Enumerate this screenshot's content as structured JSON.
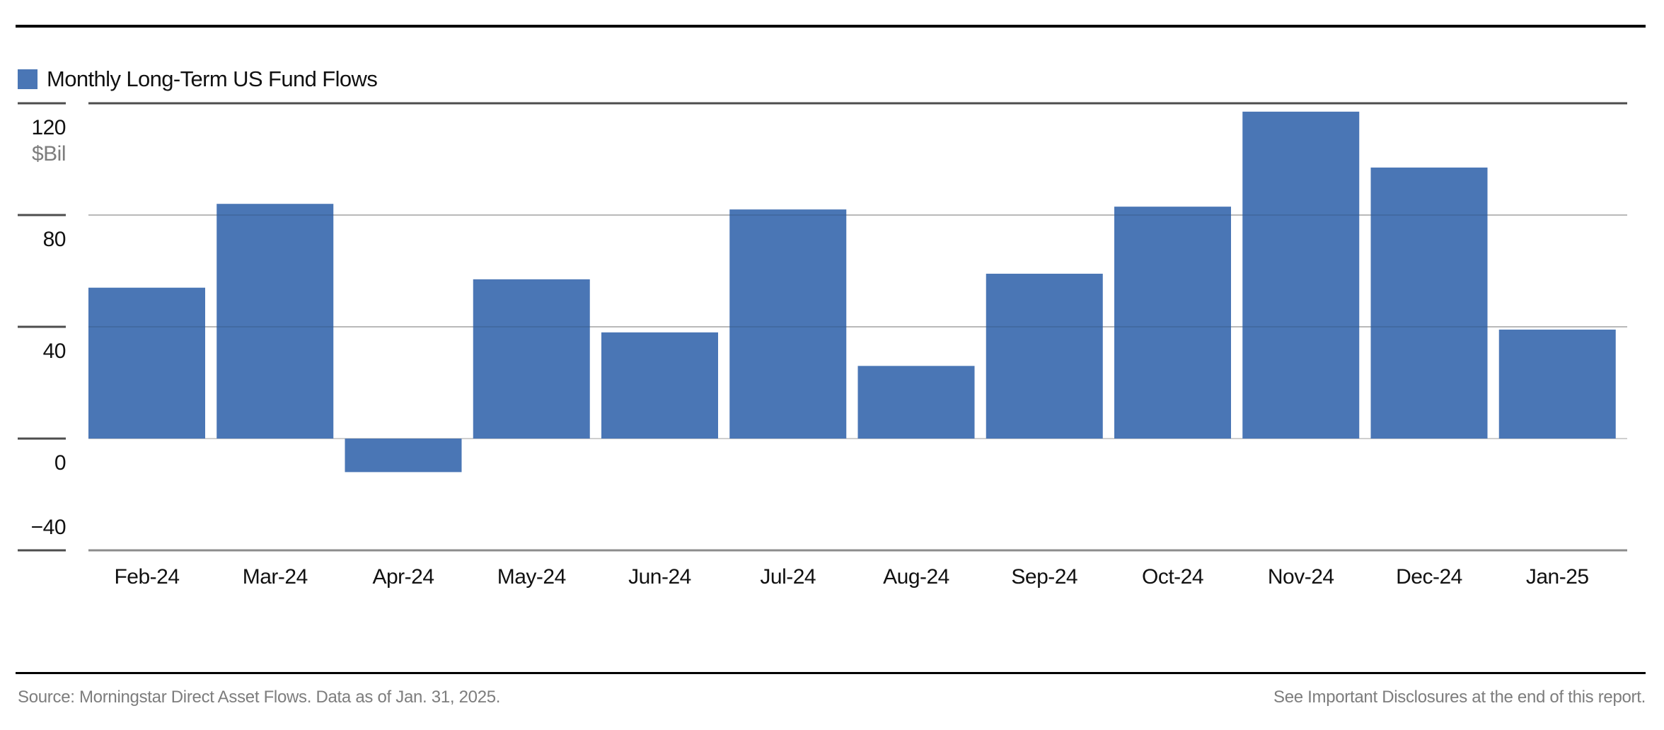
{
  "legend": {
    "label": "Monthly Long-Term US Fund Flows",
    "swatch_color": "#4a76b5"
  },
  "chart_data": {
    "type": "bar",
    "title": "Monthly Long-Term US Fund Flows",
    "categories": [
      "Feb-24",
      "Mar-24",
      "Apr-24",
      "May-24",
      "Jun-24",
      "Jul-24",
      "Aug-24",
      "Sep-24",
      "Oct-24",
      "Nov-24",
      "Dec-24",
      "Jan-25"
    ],
    "values": [
      54,
      84,
      -12,
      57,
      38,
      82,
      26,
      59,
      83,
      117,
      97,
      39
    ],
    "series_name": "Monthly Long-Term US Fund Flows",
    "xlabel": "",
    "ylabel": "$Bil",
    "unit_label": "$Bil",
    "y_ticks": [
      120,
      80,
      40,
      0,
      -40
    ],
    "y_tick_labels": [
      "120",
      "80",
      "40",
      "0",
      "−40"
    ],
    "ylim": [
      -40,
      120
    ],
    "grid": true,
    "legend_position": "top-left",
    "bar_color": "#4a76b5"
  },
  "footer": {
    "source": "Source: Morningstar Direct Asset Flows. Data as of Jan. 31, 2025.",
    "disclosure": "See Important Disclosures at the end of this report."
  }
}
